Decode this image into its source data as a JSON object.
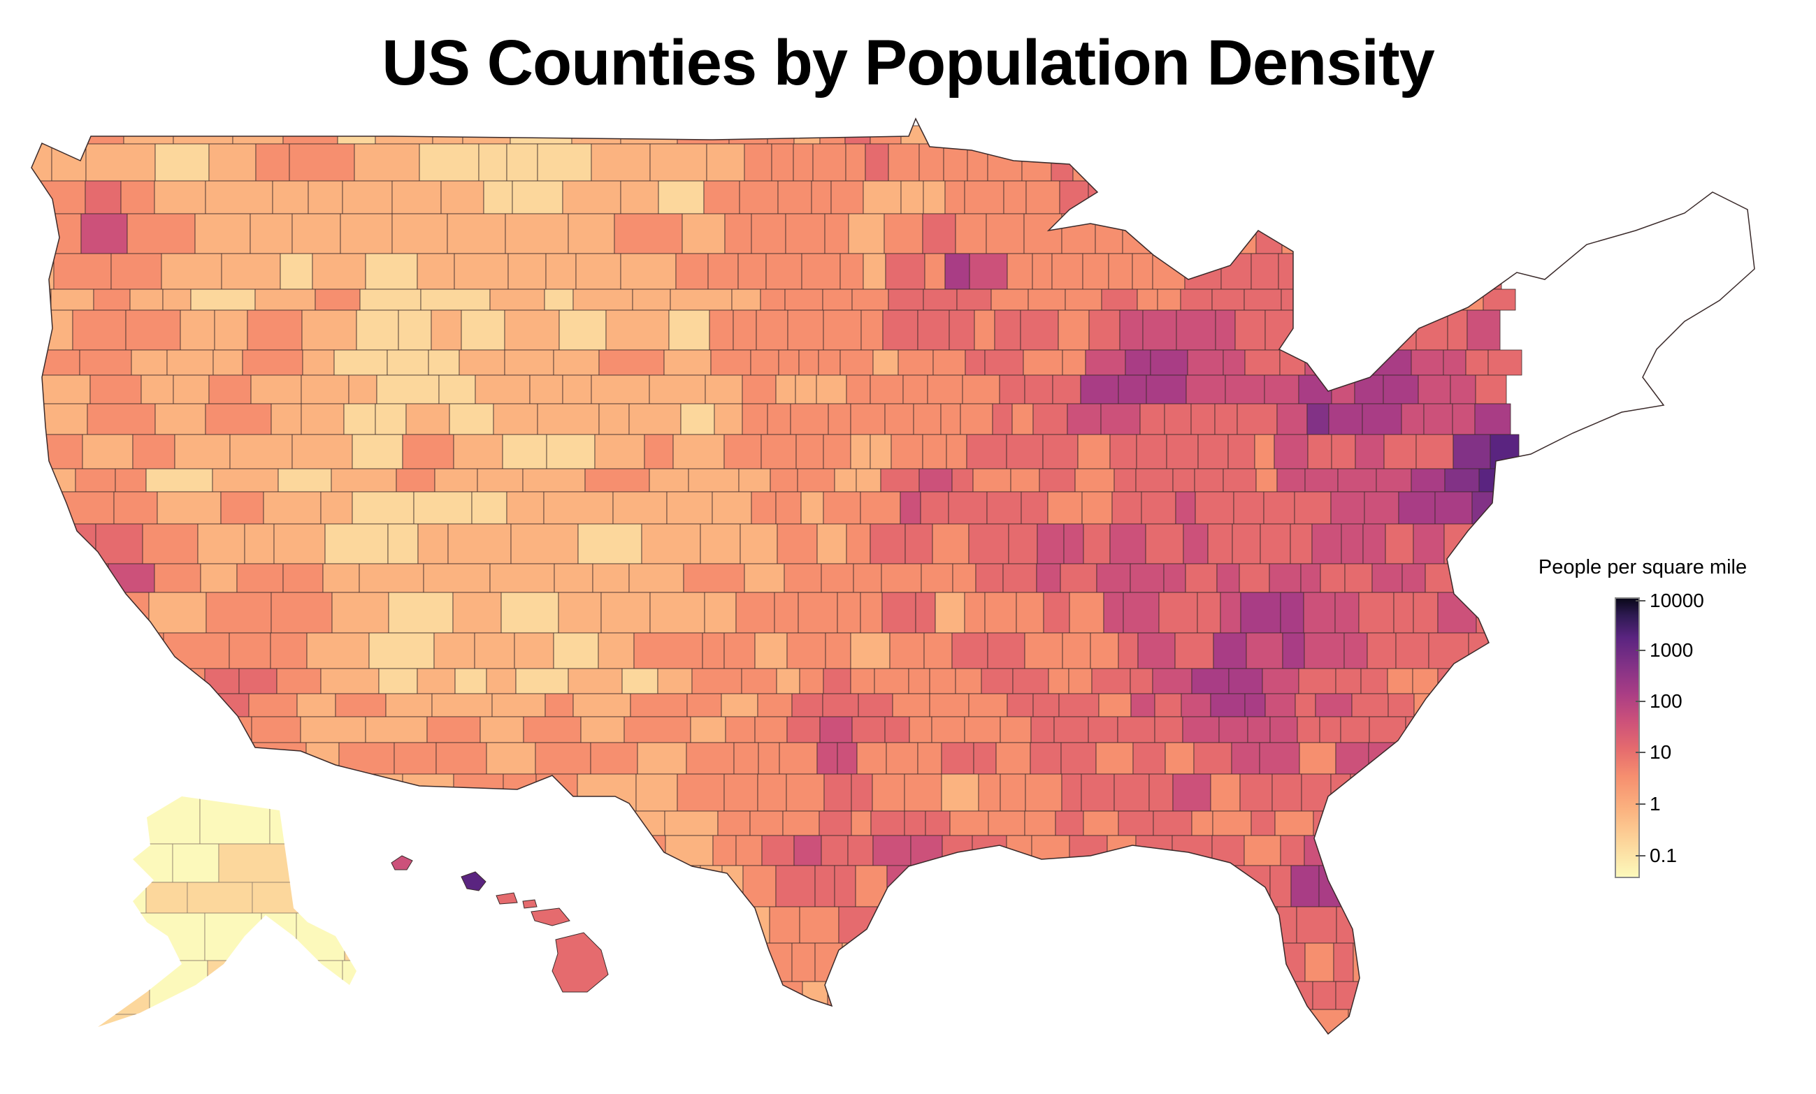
{
  "title": "US Counties by Population Density",
  "legend": {
    "title": "People per square mile",
    "ticks": [
      "10000",
      "1000",
      "100",
      "10",
      "1",
      "0.1"
    ],
    "scale": "log",
    "range": [
      0.03,
      10000
    ]
  },
  "colors": {
    "ramp": [
      "#fcf9bb",
      "#fcd79c",
      "#fbb380",
      "#f68f6f",
      "#e56b6e",
      "#cc517a",
      "#a93d85",
      "#823286",
      "#5a2480",
      "#2e1a52",
      "#0a081a"
    ],
    "border": "#3a2a2a"
  }
}
